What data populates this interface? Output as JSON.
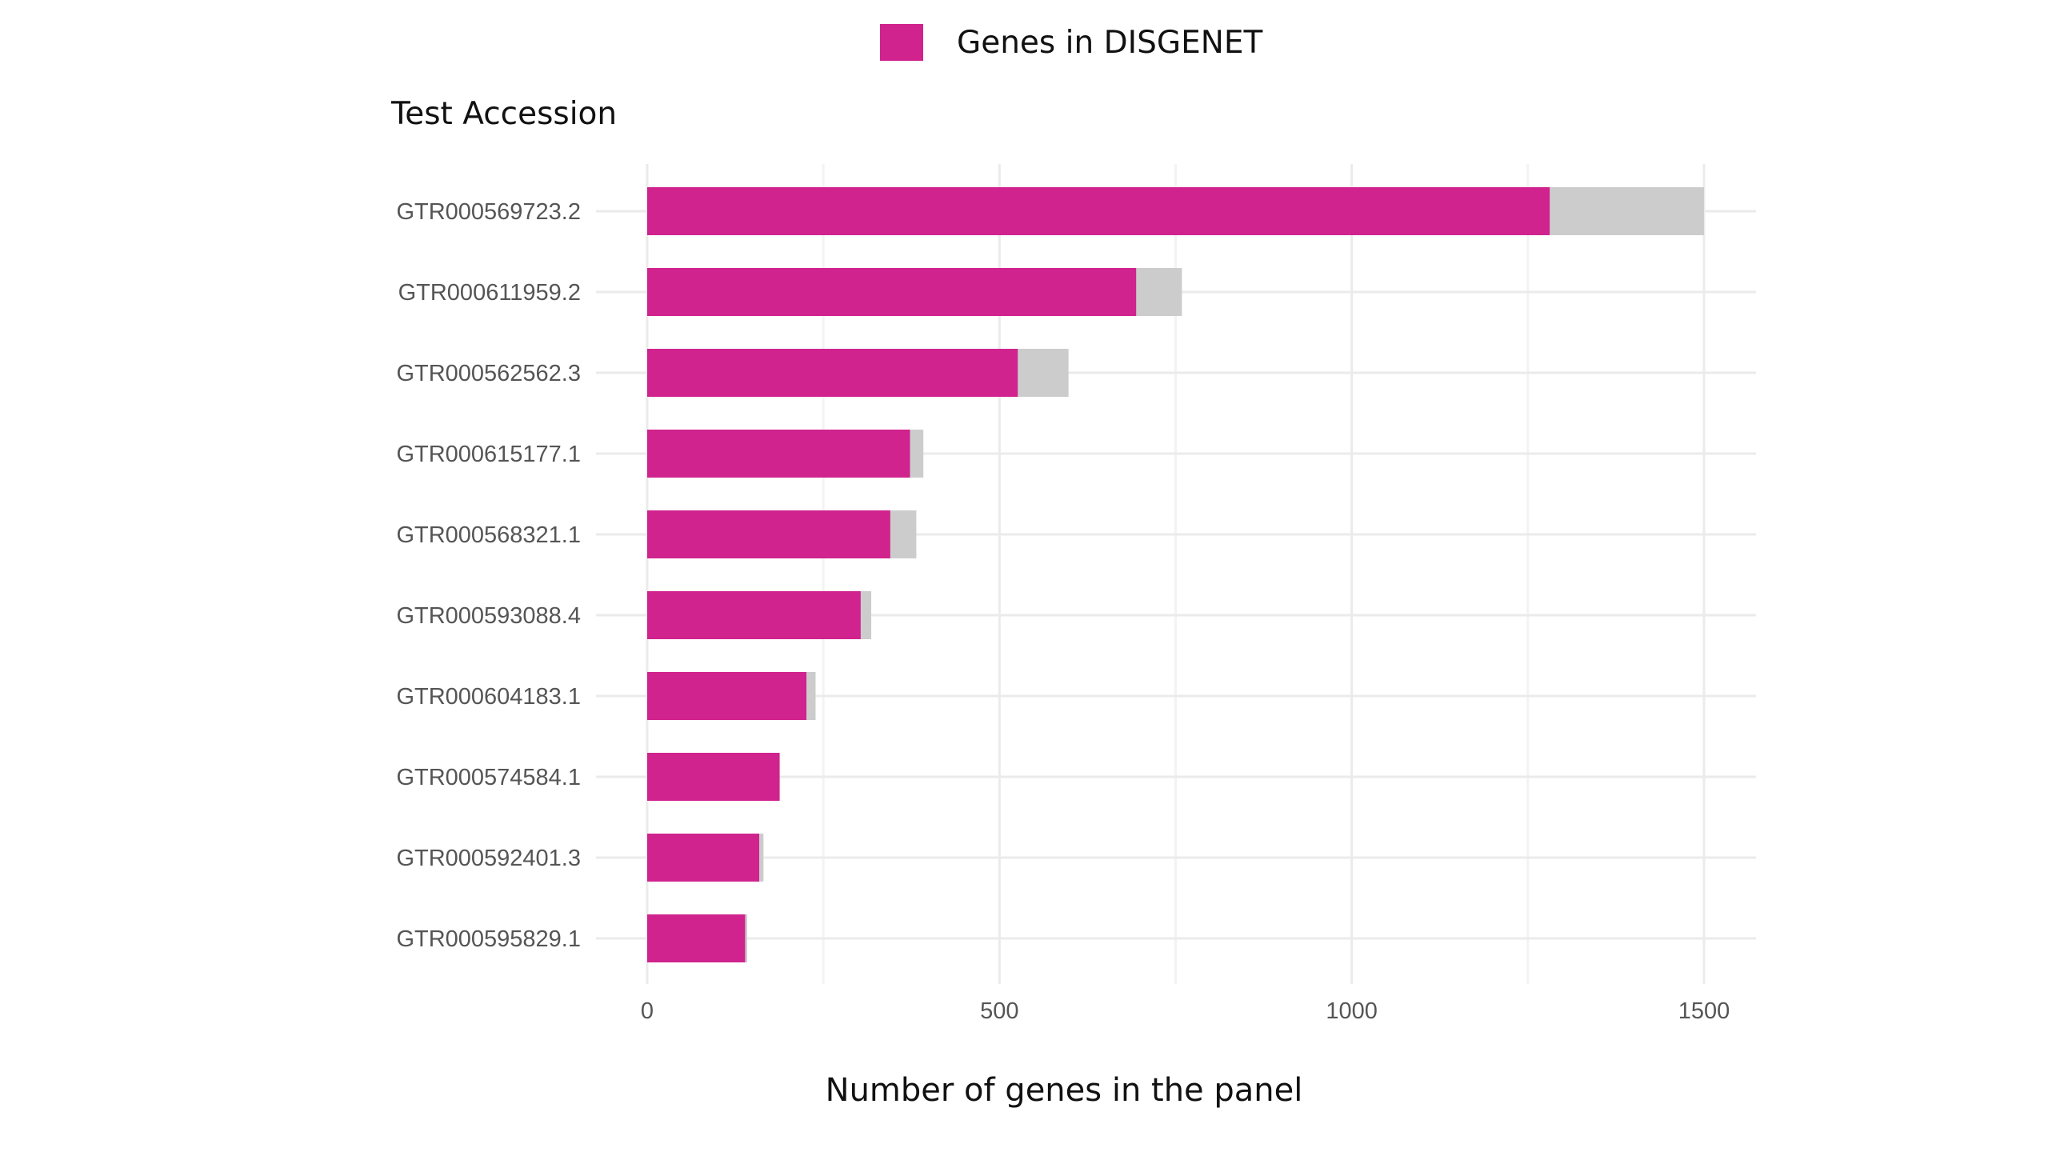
{
  "chart_data": {
    "type": "bar",
    "orientation": "horizontal",
    "ylabel": "Test Accession",
    "xlabel": "Number of genes in the panel",
    "legend": {
      "position": "top",
      "entries": [
        {
          "name": "Genes in DISGENET",
          "color": "#d0238e"
        }
      ]
    },
    "categories": [
      "GTR000569723.2",
      "GTR000611959.2",
      "GTR000562562.3",
      "GTR000615177.1",
      "GTR000568321.1",
      "GTR000593088.4",
      "GTR000604183.1",
      "GTR000574584.1",
      "GTR000592401.3",
      "GTR000595829.1"
    ],
    "series": [
      {
        "name": "Genes in DISGENET",
        "color": "#d0238e",
        "values": [
          1281,
          694,
          526,
          373,
          345,
          303,
          226,
          188,
          159,
          139
        ]
      },
      {
        "color": "#cccccc",
        "values": [
          1500,
          759,
          598,
          392,
          382,
          318,
          239,
          188,
          165,
          142
        ]
      }
    ],
    "xlim": [
      0,
      1500
    ],
    "xticks": [
      0,
      500,
      1000,
      1500
    ],
    "grid": true
  }
}
